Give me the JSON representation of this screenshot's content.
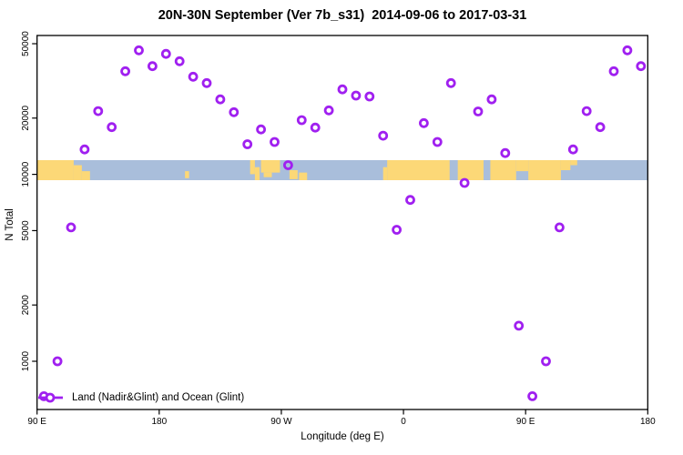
{
  "colors": {
    "point": "#A020F0",
    "land": "#FCD877",
    "ocean": "#A9BEDB",
    "axis": "#000000",
    "background": "#FFFFFF"
  },
  "chart_data": {
    "type": "scatter",
    "title": "20N-30N September (Ver 7b_s31)  2014-09-06 to 2017-03-31",
    "xlabel": "Longitude (deg E)",
    "ylabel": "N Total",
    "grid": false,
    "x_axis": {
      "lim": [
        90,
        540
      ],
      "ticks": [
        {
          "lon": 90,
          "label": "90 E"
        },
        {
          "lon": 180,
          "label": "180"
        },
        {
          "lon": 270,
          "label": "90 W"
        },
        {
          "lon": 360,
          "label": "0"
        },
        {
          "lon": 450,
          "label": "90 E"
        },
        {
          "lon": 540,
          "label": "180"
        }
      ]
    },
    "y_axis": {
      "scale": "log",
      "lim": [
        550,
        55000
      ],
      "ticks": [
        {
          "value": 1000,
          "label": "1000"
        },
        {
          "value": 2000,
          "label": "2000"
        },
        {
          "value": 5000,
          "label": "5000"
        },
        {
          "value": 10000,
          "label": "10000"
        },
        {
          "value": 20000,
          "label": "20000"
        },
        {
          "value": 50000,
          "label": "50000"
        }
      ]
    },
    "legend": {
      "position": "bottom-left",
      "label": "Land (Nadir&Glint) and Ocean (Glint)"
    },
    "series": [
      {
        "name": "Land (Nadir&Glint) and Ocean (Glint)",
        "marker": "open-circle",
        "color": "#A020F0",
        "points": [
          [
            95,
            650
          ],
          [
            105,
            1000
          ],
          [
            115,
            5200
          ],
          [
            125,
            13600
          ],
          [
            135,
            21800
          ],
          [
            145,
            17900
          ],
          [
            155,
            35600
          ],
          [
            165,
            46100
          ],
          [
            175,
            37900
          ],
          [
            185,
            44100
          ],
          [
            195,
            40300
          ],
          [
            205,
            33300
          ],
          [
            215,
            30800
          ],
          [
            225,
            25200
          ],
          [
            235,
            21500
          ],
          [
            245,
            14500
          ],
          [
            255,
            17400
          ],
          [
            265,
            14900
          ],
          [
            275,
            11200
          ],
          [
            285,
            19500
          ],
          [
            295,
            17800
          ],
          [
            305,
            22000
          ],
          [
            315,
            28500
          ],
          [
            325,
            26400
          ],
          [
            335,
            26100
          ],
          [
            345,
            16100
          ],
          [
            355,
            5050
          ],
          [
            365,
            7300
          ],
          [
            375,
            18800
          ],
          [
            385,
            14900
          ],
          [
            395,
            30800
          ],
          [
            405,
            9000
          ],
          [
            415,
            21700
          ],
          [
            425,
            25200
          ],
          [
            435,
            13000
          ],
          [
            445,
            1550
          ],
          [
            455,
            650
          ],
          [
            465,
            1000
          ],
          [
            475,
            5200
          ],
          [
            485,
            13600
          ],
          [
            495,
            21800
          ],
          [
            505,
            17900
          ],
          [
            515,
            35600
          ],
          [
            525,
            46100
          ],
          [
            535,
            37900
          ]
        ]
      }
    ],
    "map_band": {
      "value_range": [
        9500,
        12000
      ],
      "ocean_color": "#A9BEDB",
      "land_color": "#FCD877",
      "land_segments": [
        {
          "from": 90,
          "to": 117,
          "top": 0,
          "bottom": 1
        },
        {
          "from": 117,
          "to": 123,
          "top": 0.25,
          "bottom": 1
        },
        {
          "from": 123,
          "to": 129,
          "top": 0.55,
          "bottom": 1
        },
        {
          "from": 199,
          "to": 202,
          "top": 0.55,
          "bottom": 0.9
        },
        {
          "from": 247,
          "to": 250.5,
          "top": 0,
          "bottom": 0.7
        },
        {
          "from": 250.5,
          "to": 254,
          "top": 0.35,
          "bottom": 1
        },
        {
          "from": 255,
          "to": 269,
          "top": 0,
          "bottom": 0.62
        },
        {
          "from": 257,
          "to": 263,
          "top": 0.62,
          "bottom": 0.85
        },
        {
          "from": 276,
          "to": 282,
          "top": 0.5,
          "bottom": 0.95
        },
        {
          "from": 283,
          "to": 289,
          "top": 0.62,
          "bottom": 1
        },
        {
          "from": 345,
          "to": 348,
          "top": 0.35,
          "bottom": 1
        },
        {
          "from": 348,
          "to": 394,
          "top": 0,
          "bottom": 1
        },
        {
          "from": 400,
          "to": 419,
          "top": 0,
          "bottom": 1
        },
        {
          "from": 424,
          "to": 443,
          "top": 0,
          "bottom": 1
        },
        {
          "from": 443,
          "to": 452,
          "top": 0,
          "bottom": 0.55
        },
        {
          "from": 452,
          "to": 476,
          "top": 0,
          "bottom": 1
        },
        {
          "from": 476,
          "to": 483,
          "top": 0,
          "bottom": 0.5
        },
        {
          "from": 483,
          "to": 488,
          "top": 0,
          "bottom": 0.25
        }
      ]
    }
  }
}
